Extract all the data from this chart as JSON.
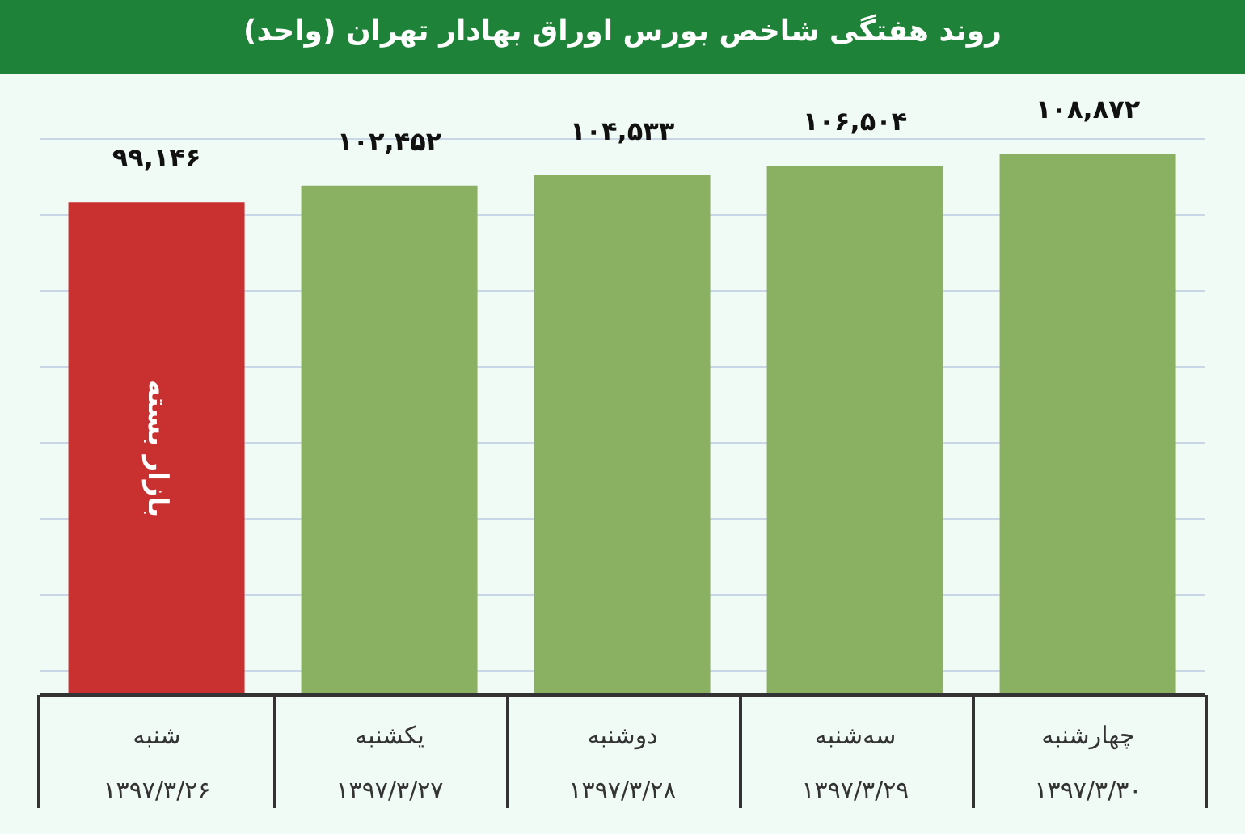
{
  "chart_data": {
    "type": "bar",
    "title": "روند هفتگی شاخص بورس اوراق بهادار تهران (واحد)",
    "categories": [
      "شنبه\n۱۳۹۷/۳/۲۶",
      "یکشنبه\n۱۳۹۷/۳/۲۷",
      "دوشنبه\n۱۳۹۷/۳/۲۸",
      "سه‌شنبه\n۱۳۹۷/۳/۲۹",
      "چهارشنبه\n۱۳۹۷/۳/۳۰"
    ],
    "values": [
      99146,
      102452,
      104533,
      106504,
      108872
    ],
    "value_labels": [
      "۹۹,۱۴۶",
      "۱۰۲,۴۵۲",
      "۱۰۴,۵۳۳",
      "۱۰۶,۵۰۴",
      "۱۰۸,۸۷۲"
    ],
    "colors": [
      "#c8312f",
      "#8ab162",
      "#8ab162",
      "#8ab162",
      "#8ab162"
    ],
    "tick_labels": "x",
    "grid": "y",
    "annotations": [
      "بازار بسته"
    ]
  }
}
